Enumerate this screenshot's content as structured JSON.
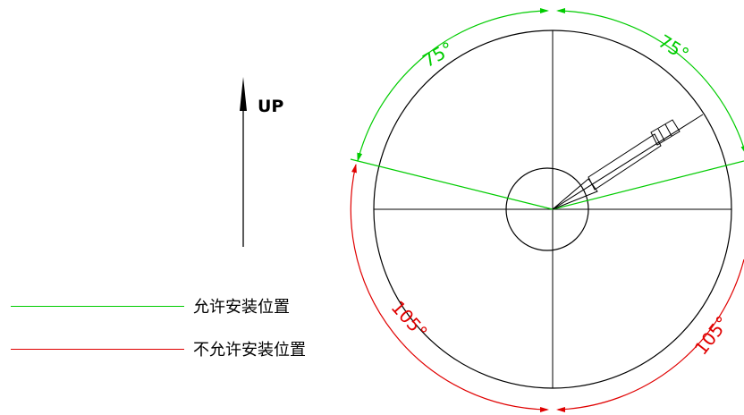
{
  "up_label": "UP",
  "angles": {
    "top_left": "75°",
    "top_right": "75°",
    "bottom_left": "105°",
    "bottom_right": "105°"
  },
  "legend": {
    "allowed": {
      "label": "允许安装位置",
      "color": "#00cc00"
    },
    "forbidden": {
      "label": "不允许安装位置",
      "color": "#e00000"
    }
  },
  "colors": {
    "outline": "#000000",
    "allowed": "#00cc00",
    "forbidden": "#e00000"
  }
}
